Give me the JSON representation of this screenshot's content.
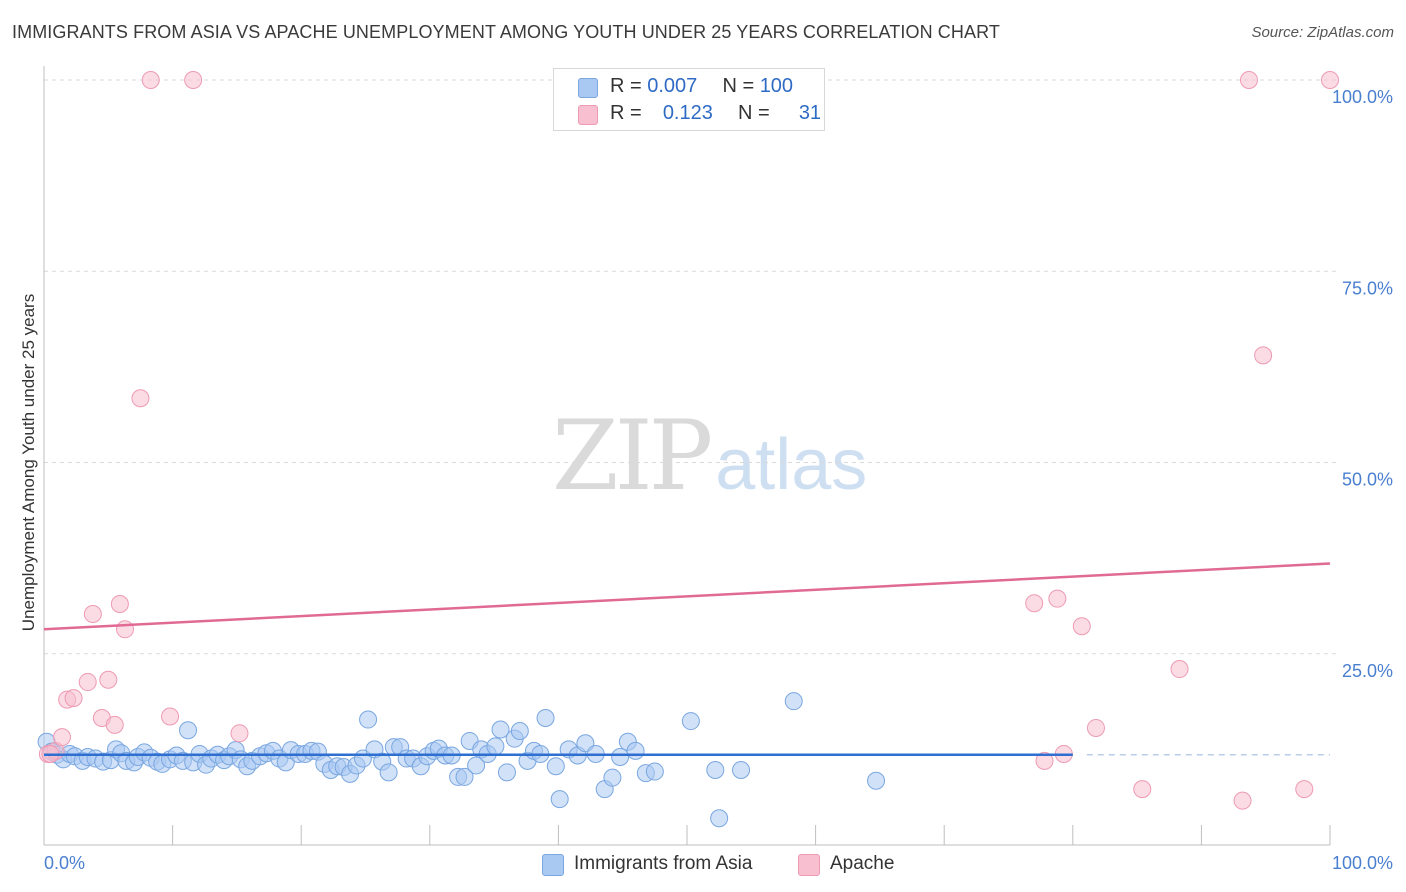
{
  "title": "IMMIGRANTS FROM ASIA VS APACHE UNEMPLOYMENT AMONG YOUTH UNDER 25 YEARS CORRELATION CHART",
  "source": "Source: ZipAtlas.com",
  "watermark": {
    "zip": "ZIP",
    "atlas": "atlas"
  },
  "legend_top": [
    {
      "r_label": "R =",
      "r_value": "0.007",
      "n_label": "N =",
      "n_value": "100",
      "color": "#a9c8f2"
    },
    {
      "r_label": "R =",
      "r_value": "0.123",
      "n_label": "N =",
      "n_value": "31",
      "color": "#f7bfd0"
    }
  ],
  "legend_bottom": [
    {
      "label": "Immigrants from Asia",
      "color": "#a9c8f2"
    },
    {
      "label": "Apache",
      "color": "#f7bfd0"
    }
  ],
  "chart_data": {
    "type": "scatter",
    "title": "IMMIGRANTS FROM ASIA VS APACHE UNEMPLOYMENT AMONG YOUTH UNDER 25 YEARS CORRELATION CHART",
    "xlabel": "",
    "ylabel": "Unemployment Among Youth under 25 years",
    "xlim": [
      0,
      100
    ],
    "ylim": [
      0,
      100
    ],
    "x_tick_labels": [
      "0.0%",
      "100.0%"
    ],
    "y_ticks": [
      25,
      50,
      75,
      100
    ],
    "y_tick_labels": [
      "25.0%",
      "50.0%",
      "75.0%",
      "100.0%"
    ],
    "axis_color": "#4a7fd0",
    "series": [
      {
        "name": "Immigrants from Asia",
        "color": "#a9c8f2",
        "stroke": "#7aa7e0",
        "trend": {
          "x0": 0,
          "y0": 11.8,
          "x1": 80,
          "y1": 11.8,
          "color": "#2e6fd0",
          "dash_to": 100
        },
        "points": [
          [
            0.2,
            13.5
          ],
          [
            0.6,
            12.2
          ],
          [
            1.0,
            11.8
          ],
          [
            1.5,
            11.2
          ],
          [
            2.0,
            11.9
          ],
          [
            2.4,
            11.6
          ],
          [
            3.0,
            11.0
          ],
          [
            3.4,
            11.5
          ],
          [
            4.0,
            11.3
          ],
          [
            4.6,
            10.9
          ],
          [
            5.2,
            11.1
          ],
          [
            5.6,
            12.5
          ],
          [
            6.0,
            12.0
          ],
          [
            6.4,
            11.0
          ],
          [
            7.0,
            10.8
          ],
          [
            7.3,
            11.5
          ],
          [
            7.8,
            12.1
          ],
          [
            8.3,
            11.4
          ],
          [
            8.8,
            10.9
          ],
          [
            9.2,
            10.6
          ],
          [
            9.8,
            11.2
          ],
          [
            10.3,
            11.7
          ],
          [
            10.8,
            11.0
          ],
          [
            11.2,
            15.0
          ],
          [
            11.6,
            10.8
          ],
          [
            12.1,
            11.9
          ],
          [
            12.6,
            10.5
          ],
          [
            13.0,
            11.3
          ],
          [
            13.5,
            11.8
          ],
          [
            14.0,
            11.1
          ],
          [
            14.4,
            11.6
          ],
          [
            14.9,
            12.4
          ],
          [
            15.3,
            11.2
          ],
          [
            15.8,
            10.3
          ],
          [
            16.2,
            11.0
          ],
          [
            16.8,
            11.6
          ],
          [
            17.3,
            12.0
          ],
          [
            17.8,
            12.3
          ],
          [
            18.3,
            11.3
          ],
          [
            18.8,
            10.8
          ],
          [
            19.2,
            12.4
          ],
          [
            19.8,
            11.9
          ],
          [
            20.3,
            11.9
          ],
          [
            20.8,
            12.3
          ],
          [
            21.3,
            12.2
          ],
          [
            21.8,
            10.6
          ],
          [
            22.3,
            9.8
          ],
          [
            22.8,
            10.3
          ],
          [
            23.3,
            10.2
          ],
          [
            23.8,
            9.3
          ],
          [
            24.3,
            10.4
          ],
          [
            24.8,
            11.3
          ],
          [
            25.2,
            16.4
          ],
          [
            25.7,
            12.5
          ],
          [
            26.3,
            10.9
          ],
          [
            26.8,
            9.5
          ],
          [
            27.2,
            12.8
          ],
          [
            27.7,
            12.8
          ],
          [
            28.2,
            11.3
          ],
          [
            28.7,
            11.3
          ],
          [
            29.3,
            10.3
          ],
          [
            29.8,
            11.6
          ],
          [
            30.3,
            12.3
          ],
          [
            30.7,
            12.6
          ],
          [
            31.2,
            11.7
          ],
          [
            31.7,
            11.7
          ],
          [
            32.2,
            8.9
          ],
          [
            32.7,
            8.9
          ],
          [
            33.1,
            13.6
          ],
          [
            33.6,
            10.4
          ],
          [
            34.0,
            12.5
          ],
          [
            34.5,
            11.9
          ],
          [
            35.1,
            12.9
          ],
          [
            35.5,
            15.1
          ],
          [
            36.0,
            9.5
          ],
          [
            36.6,
            13.9
          ],
          [
            37.0,
            14.9
          ],
          [
            37.6,
            11.0
          ],
          [
            38.1,
            12.3
          ],
          [
            38.6,
            11.9
          ],
          [
            39.0,
            16.6
          ],
          [
            39.8,
            10.3
          ],
          [
            40.8,
            12.5
          ],
          [
            41.5,
            11.7
          ],
          [
            42.1,
            13.3
          ],
          [
            42.9,
            11.9
          ],
          [
            43.6,
            7.3
          ],
          [
            44.2,
            8.8
          ],
          [
            44.8,
            11.5
          ],
          [
            45.4,
            13.5
          ],
          [
            46.0,
            12.3
          ],
          [
            46.8,
            9.4
          ],
          [
            47.5,
            9.6
          ],
          [
            50.3,
            16.2
          ],
          [
            52.2,
            9.8
          ],
          [
            54.2,
            9.8
          ],
          [
            40.1,
            6.0
          ],
          [
            58.3,
            18.8
          ],
          [
            64.7,
            8.4
          ],
          [
            52.5,
            3.5
          ]
        ]
      },
      {
        "name": "Apache",
        "color": "#f7bfd0",
        "stroke": "#ee9ab3",
        "trend": {
          "x0": 0,
          "y0": 28.2,
          "x1": 100,
          "y1": 36.8,
          "color": "#e06a94"
        },
        "points": [
          [
            0.3,
            11.9
          ],
          [
            0.9,
            12.3
          ],
          [
            1.4,
            14.1
          ],
          [
            1.8,
            19.0
          ],
          [
            2.3,
            19.2
          ],
          [
            3.4,
            21.3
          ],
          [
            3.8,
            30.2
          ],
          [
            4.5,
            16.6
          ],
          [
            5.0,
            21.6
          ],
          [
            5.5,
            15.7
          ],
          [
            5.9,
            31.5
          ],
          [
            6.3,
            28.2
          ],
          [
            7.5,
            58.4
          ],
          [
            8.3,
            100
          ],
          [
            9.8,
            16.8
          ],
          [
            11.6,
            100
          ],
          [
            15.2,
            14.6
          ],
          [
            77.0,
            31.6
          ],
          [
            78.8,
            32.2
          ],
          [
            80.7,
            28.6
          ],
          [
            79.3,
            11.9
          ],
          [
            77.8,
            11.0
          ],
          [
            81.8,
            15.3
          ],
          [
            85.4,
            7.3
          ],
          [
            88.3,
            23.0
          ],
          [
            93.2,
            5.8
          ],
          [
            93.7,
            100
          ],
          [
            94.8,
            64.0
          ],
          [
            98.0,
            7.3
          ],
          [
            100,
            100
          ],
          [
            0.5,
            11.9
          ]
        ]
      }
    ]
  }
}
